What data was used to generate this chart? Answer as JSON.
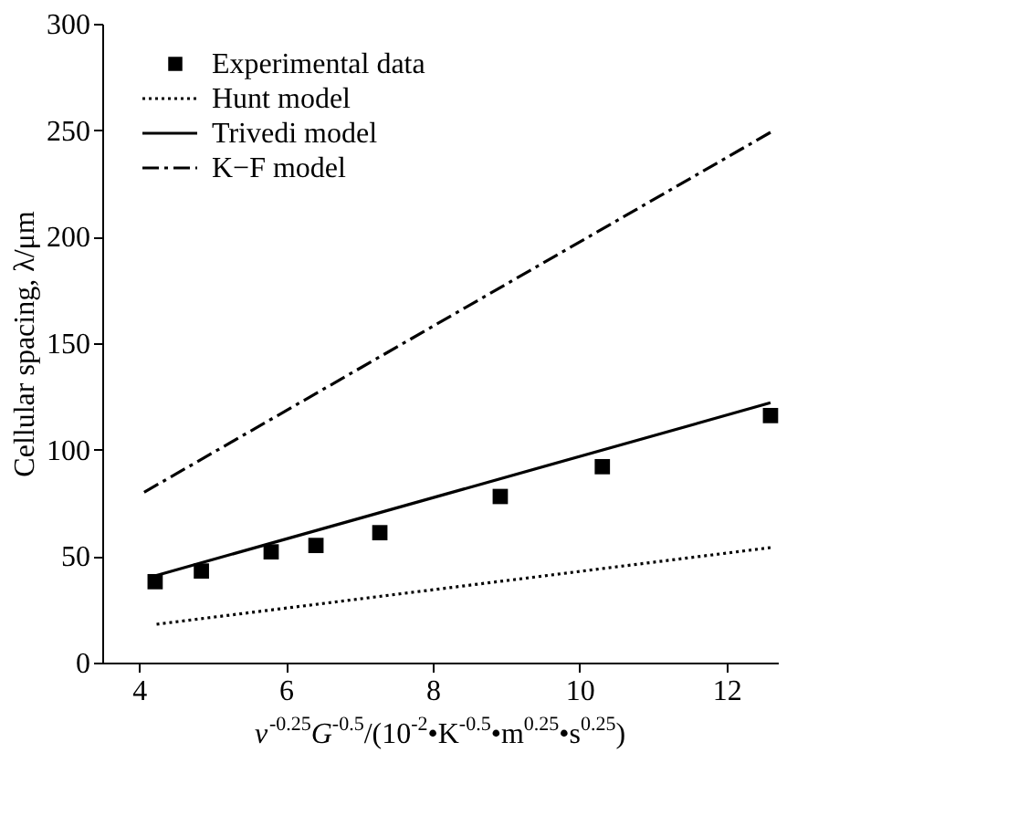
{
  "chart_data": {
    "type": "scatter",
    "xlabel": "v$^{-0.25}$G$^{-0.5}$/(10$^{-2}$•K$^{-0.5}$•m$^{0.25}$•s$^{0.25}$)",
    "ylabel": "Cellular spacing, λ/μm",
    "xlim": [
      3.5,
      12.7
    ],
    "xticks": [
      4,
      6,
      8,
      10,
      12
    ],
    "ylim": [
      0,
      300
    ],
    "yticks": [
      0,
      50,
      100,
      150,
      200,
      250,
      300
    ],
    "grid": false,
    "legend": "top left",
    "series": [
      {
        "name": "Experimental data",
        "marker": "square",
        "color": "#000000",
        "x": [
          4.22,
          4.85,
          5.8,
          6.41,
          7.28,
          8.92,
          10.31,
          12.6
        ],
        "values": [
          38,
          43,
          52,
          55,
          61,
          78,
          92,
          116
        ]
      },
      {
        "name": "Hunt model",
        "type": "line",
        "line_style": "dotted",
        "color": "#000000",
        "x": [
          4.24,
          12.6
        ],
        "values": [
          18,
          54
        ]
      },
      {
        "name": "Trivedi model",
        "type": "line",
        "line_style": "solid",
        "color": "#000000",
        "x": [
          4.14,
          12.6
        ],
        "values": [
          40,
          122
        ]
      },
      {
        "name": "K−F model",
        "type": "line",
        "line_style": "dashdot",
        "color": "#000000",
        "x": [
          4.07,
          12.6
        ],
        "values": [
          80,
          249
        ]
      }
    ]
  }
}
